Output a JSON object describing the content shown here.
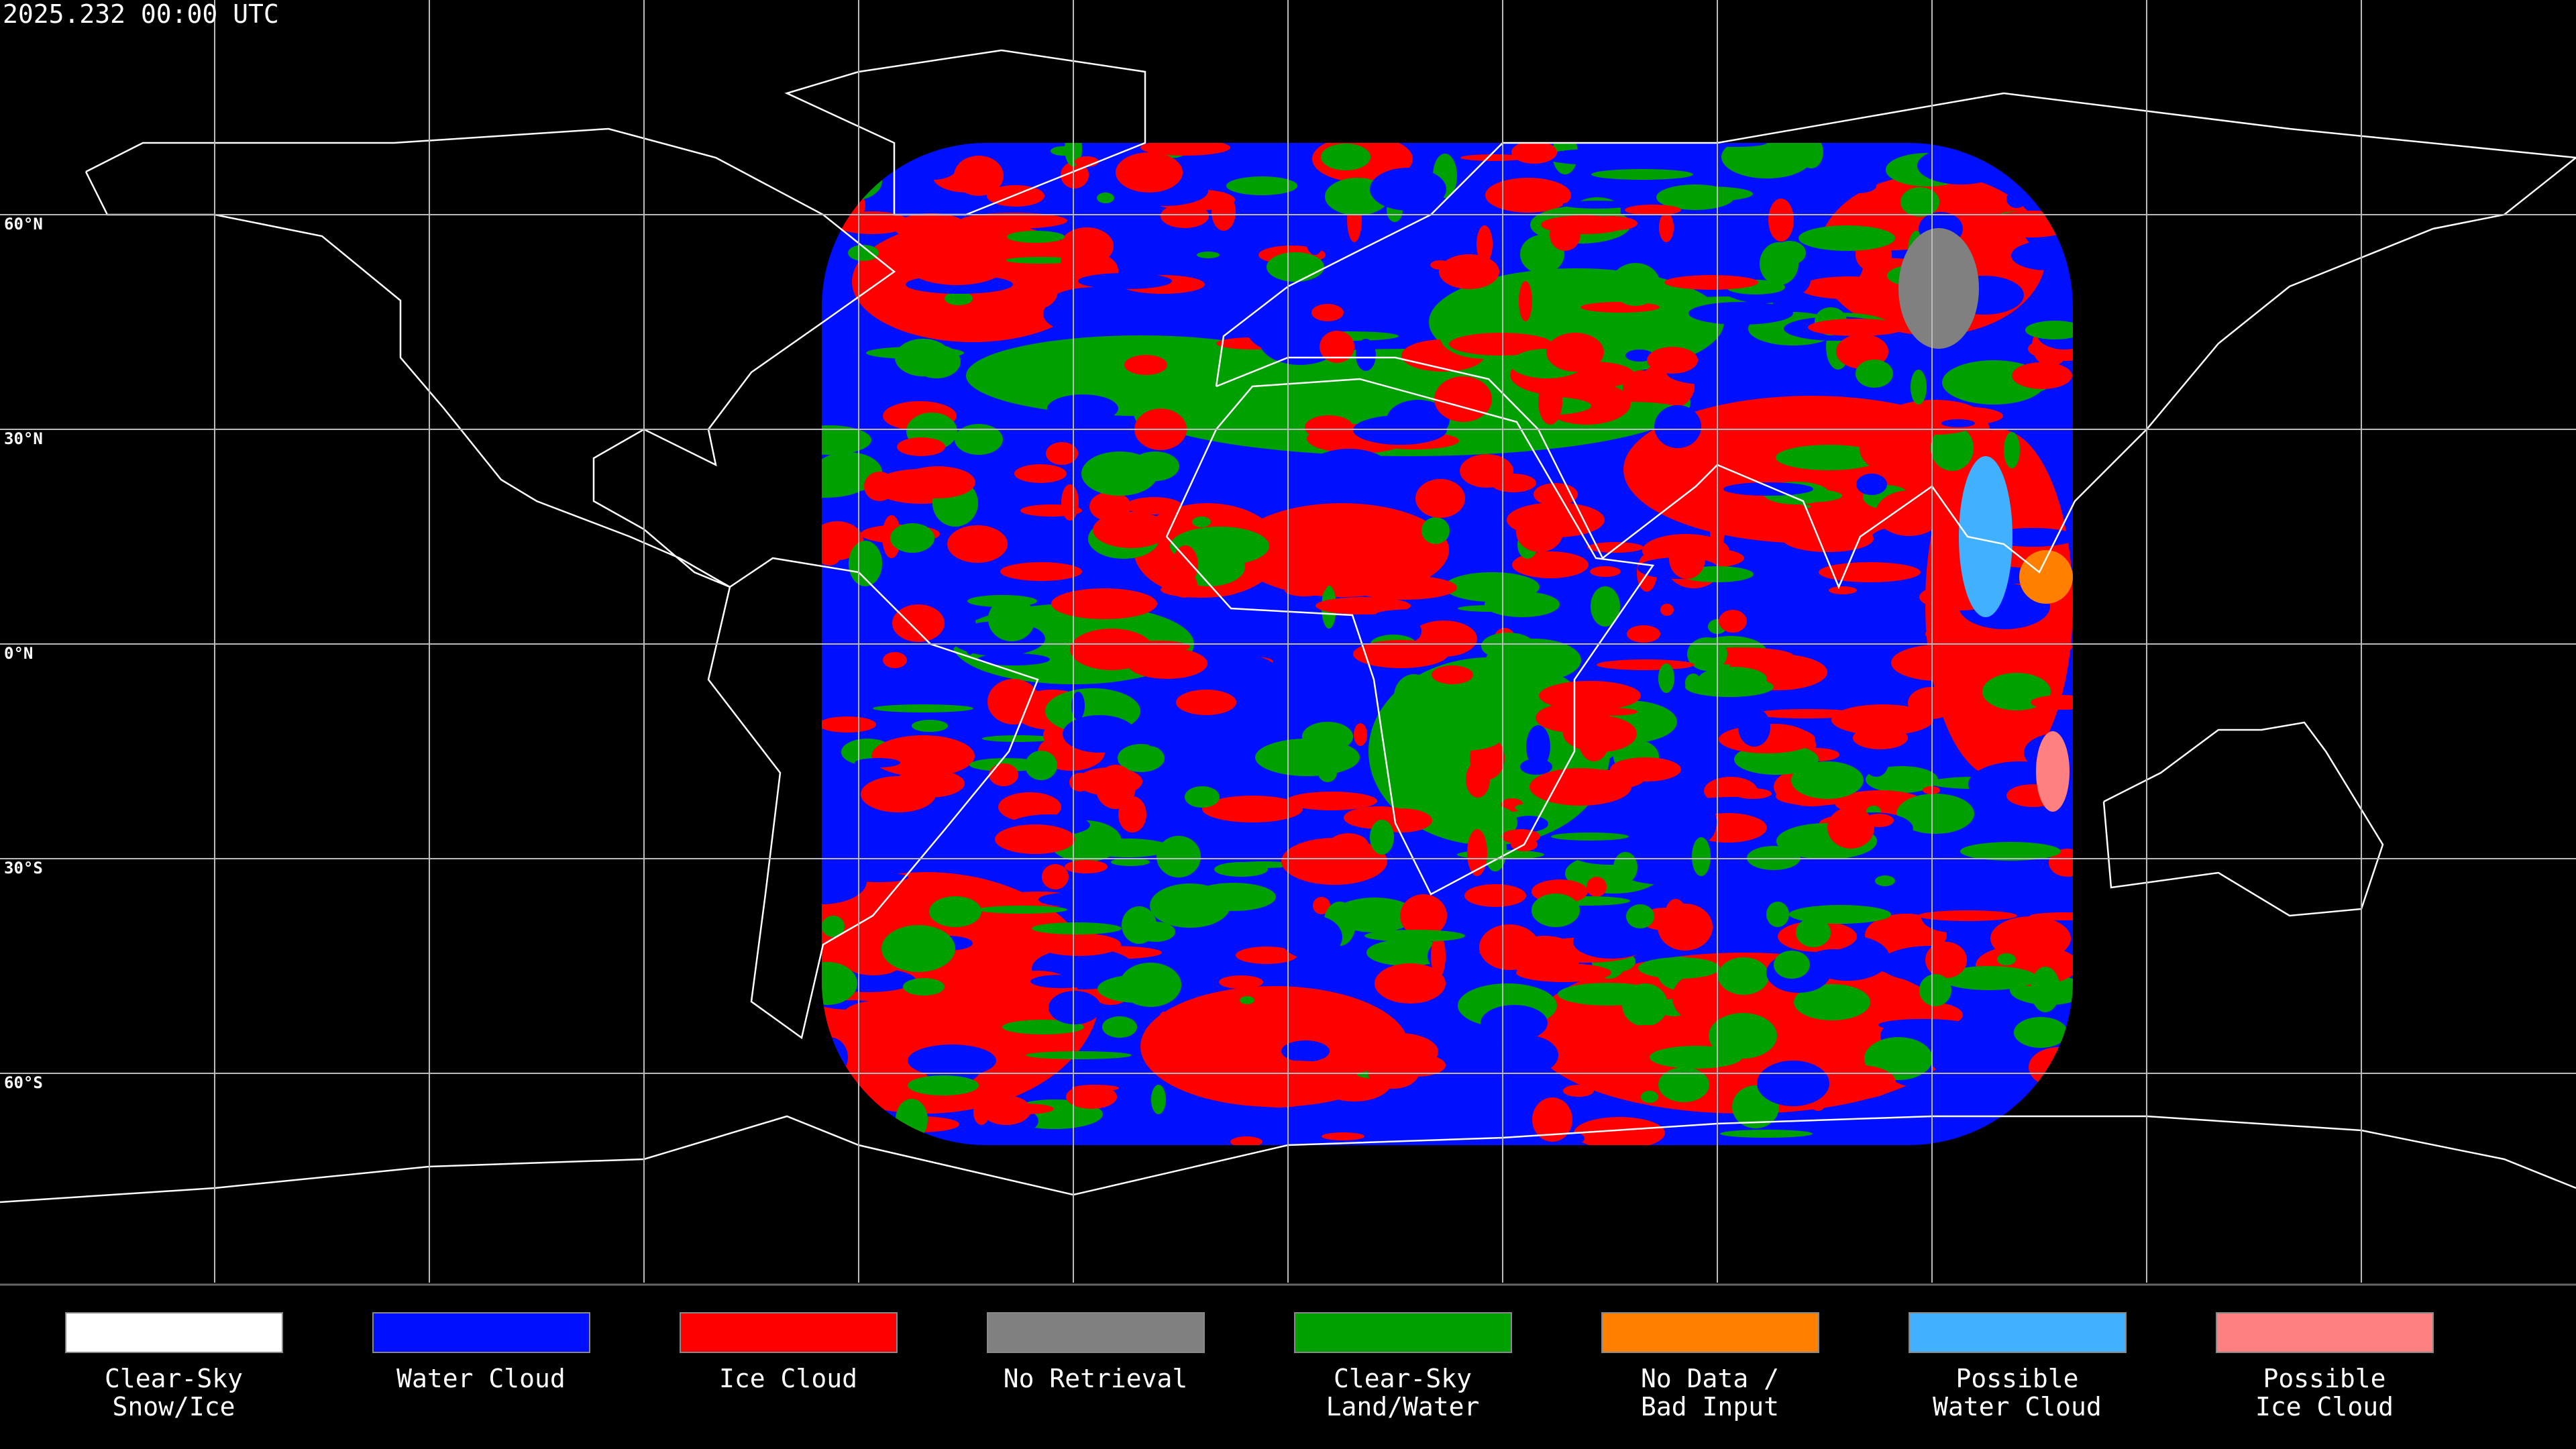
{
  "timestamp": "2025.232 00:00 UTC",
  "latitude_labels": [
    "60°N",
    "30°N",
    "0°N",
    "30°S",
    "60°S"
  ],
  "legend": [
    {
      "label": [
        "Clear-Sky",
        "Snow/Ice"
      ],
      "color": "#ffffff"
    },
    {
      "label": [
        "Water Cloud"
      ],
      "color": "#0010ff"
    },
    {
      "label": [
        "Ice Cloud"
      ],
      "color": "#ff0000"
    },
    {
      "label": [
        "No Retrieval"
      ],
      "color": "#808080"
    },
    {
      "label": [
        "Clear-Sky",
        "Land/Water"
      ],
      "color": "#00a000"
    },
    {
      "label": [
        "No Data /",
        "Bad Input"
      ],
      "color": "#ff8000"
    },
    {
      "label": [
        "Possible",
        "Water Cloud"
      ],
      "color": "#40b0ff"
    },
    {
      "label": [
        "Possible",
        "Ice Cloud"
      ],
      "color": "#ff8080"
    }
  ]
}
